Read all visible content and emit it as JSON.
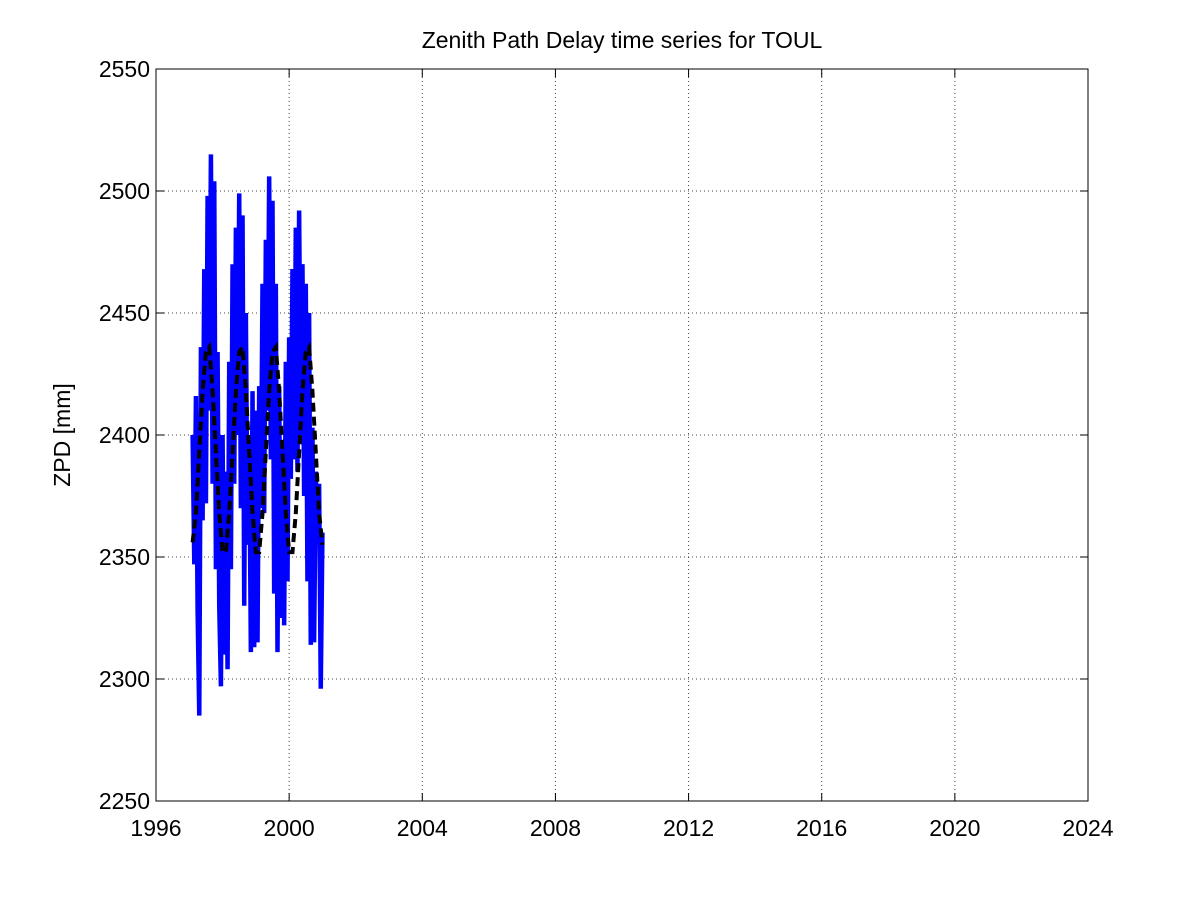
{
  "chart_data": {
    "type": "line",
    "title": "Zenith Path Delay time series for TOUL",
    "ylabel": "ZPD [mm]",
    "xlim": [
      1996,
      2024
    ],
    "xticks": [
      1996,
      2000,
      2004,
      2008,
      2012,
      2016,
      2020,
      2024
    ],
    "ylim": [
      2250,
      2550
    ],
    "yticks": [
      2250,
      2300,
      2350,
      2400,
      2450,
      2500,
      2550
    ],
    "grid": true,
    "series": [
      {
        "color": "#0000ff",
        "line_style": "solid",
        "x": [
          1997.1,
          1997.15,
          1997.2,
          1997.25,
          1997.3,
          1997.35,
          1997.4,
          1997.45,
          1997.5,
          1997.55,
          1997.6,
          1997.65,
          1997.7,
          1997.75,
          1997.8,
          1997.85,
          1997.9,
          1997.95,
          1998.0,
          1998.05,
          1998.1,
          1998.15,
          1998.2,
          1998.25,
          1998.3,
          1998.35,
          1998.4,
          1998.45,
          1998.5,
          1998.55,
          1998.6,
          1998.65,
          1998.7,
          1998.75,
          1998.8,
          1998.85,
          1998.9,
          1998.95,
          1999.0,
          1999.05,
          1999.1,
          1999.15,
          1999.2,
          1999.25,
          1999.3,
          1999.35,
          1999.4,
          1999.45,
          1999.5,
          1999.55,
          1999.6,
          1999.65,
          1999.7,
          1999.75,
          1999.8,
          1999.85,
          1999.9,
          1999.95,
          2000.0,
          2000.05,
          2000.1,
          2000.15,
          2000.2,
          2000.25,
          2000.3,
          2000.35,
          2000.4,
          2000.45,
          2000.5,
          2000.55,
          2000.6,
          2000.65,
          2000.7,
          2000.75,
          2000.8,
          2000.85,
          2000.9,
          2000.95,
          2001.0
        ],
        "values": [
          2400,
          2347,
          2416,
          2328,
          2285,
          2436,
          2365,
          2468,
          2372,
          2498,
          2410,
          2515,
          2380,
          2504,
          2345,
          2434,
          2330,
          2297,
          2400,
          2310,
          2385,
          2304,
          2430,
          2345,
          2470,
          2380,
          2485,
          2400,
          2499,
          2370,
          2490,
          2330,
          2450,
          2355,
          2400,
          2311,
          2418,
          2313,
          2410,
          2315,
          2420,
          2370,
          2462,
          2368,
          2480,
          2410,
          2506,
          2390,
          2496,
          2335,
          2462,
          2311,
          2420,
          2325,
          2398,
          2322,
          2430,
          2340,
          2440,
          2382,
          2468,
          2390,
          2485,
          2385,
          2492,
          2400,
          2470,
          2375,
          2462,
          2340,
          2450,
          2314,
          2403,
          2315,
          2385,
          2355,
          2380,
          2296,
          2360
        ]
      },
      {
        "color": "#000000",
        "line_style": "dashed",
        "x": [
          1997.1,
          1997.2,
          1997.3,
          1997.4,
          1997.5,
          1997.6,
          1997.7,
          1997.8,
          1997.9,
          1998.0,
          1998.1,
          1998.2,
          1998.3,
          1998.4,
          1998.5,
          1998.6,
          1998.7,
          1998.8,
          1998.9,
          1999.0,
          1999.1,
          1999.2,
          1999.3,
          1999.4,
          1999.5,
          1999.6,
          1999.7,
          1999.8,
          1999.9,
          2000.0,
          2000.1,
          2000.2,
          2000.3,
          2000.4,
          2000.5,
          2000.6,
          2000.7,
          2000.8,
          2000.9,
          2001.0
        ],
        "values": [
          2356,
          2368,
          2393,
          2418,
          2434,
          2436,
          2418,
          2393,
          2368,
          2352,
          2352,
          2368,
          2393,
          2418,
          2434,
          2436,
          2418,
          2393,
          2368,
          2352,
          2352,
          2368,
          2393,
          2418,
          2434,
          2436,
          2418,
          2393,
          2368,
          2352,
          2352,
          2368,
          2393,
          2418,
          2434,
          2436,
          2418,
          2393,
          2368,
          2355
        ]
      }
    ]
  }
}
